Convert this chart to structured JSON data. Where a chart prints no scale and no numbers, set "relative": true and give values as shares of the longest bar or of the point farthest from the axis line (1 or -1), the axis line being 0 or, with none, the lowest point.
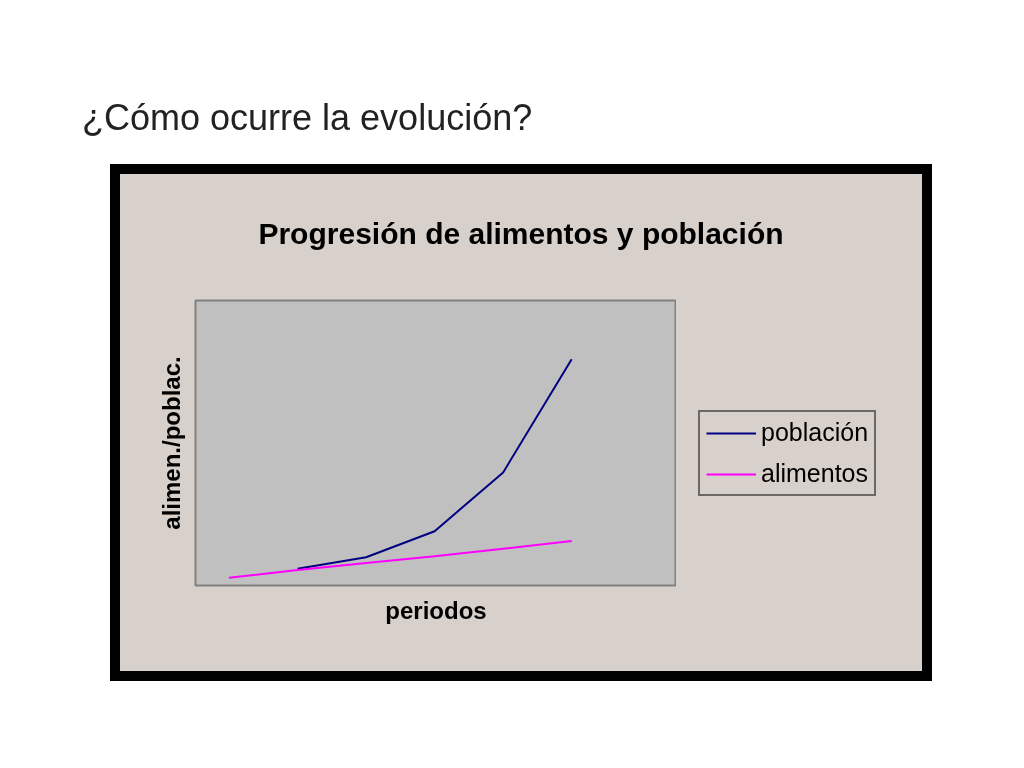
{
  "chart_data": {
    "type": "line",
    "title": "¿Cómo ocurre la evolución?",
    "subtitle": "Progresión de alimentos y población",
    "xlabel": "periodos",
    "ylabel": "alimen./poblac.",
    "relative": true,
    "tick_labels": false,
    "grid": false,
    "legend": "right",
    "marker": "none",
    "line_style": "solid",
    "categories": [
      null,
      null,
      null,
      null,
      null,
      null
    ],
    "series": [
      {
        "name": "población",
        "color": "#000080",
        "values": [
          null,
          0.074,
          0.125,
          0.24,
          0.5,
          1
        ]
      },
      {
        "name": "alimentos",
        "color": "#ff00ff",
        "values": [
          0.034,
          0.069,
          0.099,
          0.129,
          0.162,
          0.197
        ]
      }
    ]
  }
}
